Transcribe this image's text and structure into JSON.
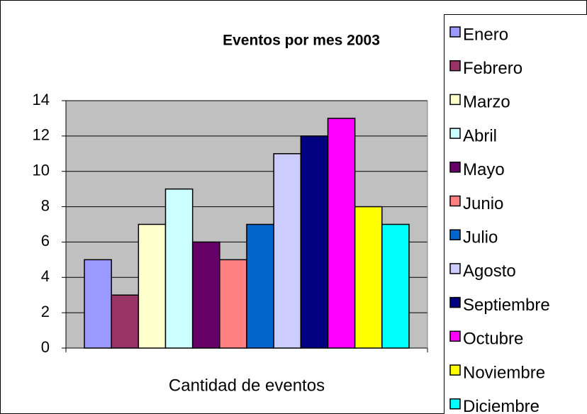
{
  "chart_data": {
    "type": "bar",
    "title": "Eventos por mes 2003",
    "categories": [
      "Cantidad de eventos"
    ],
    "series": [
      {
        "name": "Enero",
        "color": "#9999ff",
        "values": [
          5
        ]
      },
      {
        "name": "Febrero",
        "color": "#993366",
        "values": [
          3
        ]
      },
      {
        "name": "Marzo",
        "color": "#ffffcc",
        "values": [
          7
        ]
      },
      {
        "name": "Abril",
        "color": "#ccffff",
        "values": [
          9
        ]
      },
      {
        "name": "Mayo",
        "color": "#660066",
        "values": [
          6
        ]
      },
      {
        "name": "Junio",
        "color": "#ff8080",
        "values": [
          5
        ]
      },
      {
        "name": "Julio",
        "color": "#0066cc",
        "values": [
          7
        ]
      },
      {
        "name": "Agosto",
        "color": "#ccccff",
        "values": [
          11
        ]
      },
      {
        "name": "Septiembre",
        "color": "#000080",
        "values": [
          12
        ]
      },
      {
        "name": "Octubre",
        "color": "#ff00ff",
        "values": [
          13
        ]
      },
      {
        "name": "Noviembre",
        "color": "#ffff00",
        "values": [
          8
        ]
      },
      {
        "name": "Diciembre",
        "color": "#00ffff",
        "values": [
          7
        ]
      }
    ],
    "ylim": [
      0,
      14
    ],
    "yticks": [
      0,
      2,
      4,
      6,
      8,
      10,
      12,
      14
    ],
    "grid": true,
    "legend": "right"
  }
}
